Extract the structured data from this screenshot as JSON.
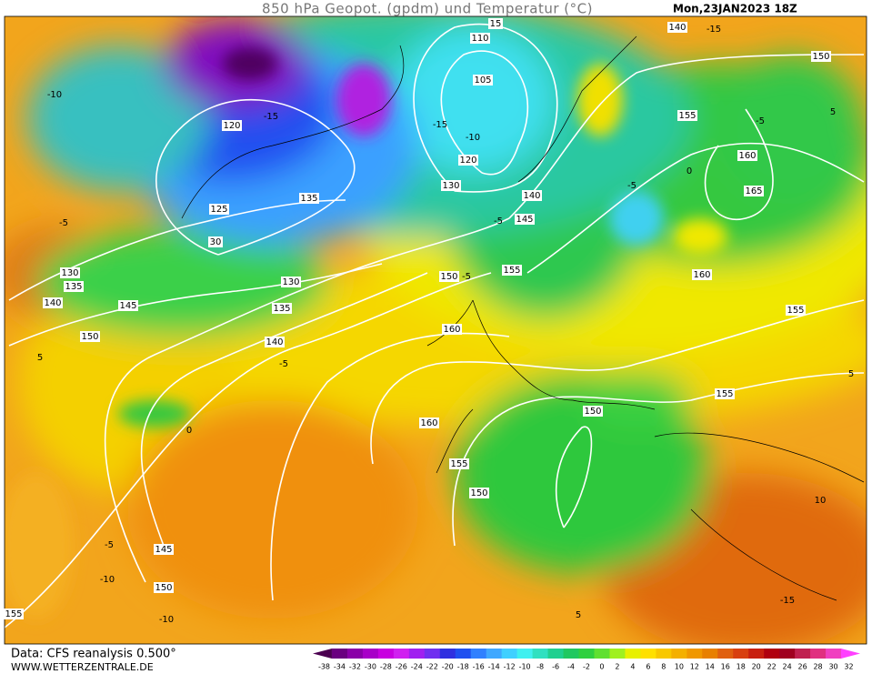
{
  "header": {
    "title": "850 hPa Geopot. (gpdm) und Temperatur (°C)",
    "date": "Mon,23JAN2023 18Z"
  },
  "footer": {
    "source": "Data: CFS reanalysis 0.500°",
    "website": "WWW.WETTERZENTRALE.DE"
  },
  "legend": {
    "labels": [
      "-38",
      "-34",
      "-32",
      "-30",
      "-28",
      "-26",
      "-24",
      "-22",
      "-20",
      "-18",
      "-16",
      "-14",
      "-12",
      "-10",
      "-8",
      "-6",
      "-4",
      "-2",
      "0",
      "2",
      "4",
      "6",
      "8",
      "10",
      "12",
      "14",
      "16",
      "18",
      "20",
      "22",
      "24",
      "26",
      "28",
      "30",
      "32"
    ],
    "colors": [
      "#4b0050",
      "#6a0080",
      "#8a00a8",
      "#a800c8",
      "#c800e0",
      "#d020f0",
      "#a020f0",
      "#7030f0",
      "#3030e0",
      "#2050f0",
      "#3080ff",
      "#40a8ff",
      "#40d0ff",
      "#40f0f0",
      "#30e0c0",
      "#20d090",
      "#20c860",
      "#30d040",
      "#60e030",
      "#a0f020",
      "#e8f000",
      "#ffe000",
      "#f8c800",
      "#f4b000",
      "#f09800",
      "#e88000",
      "#e06010",
      "#d84010",
      "#c82010",
      "#b00010",
      "#a00020",
      "#c02050",
      "#e03080",
      "#f040c0",
      "#ff40ff"
    ]
  },
  "geopotential_labels": [
    "110",
    "105",
    "120",
    "125",
    "30",
    "135",
    "120",
    "130",
    "140",
    "145",
    "150",
    "155",
    "160",
    "160",
    "155",
    "150",
    "150",
    "155",
    "155",
    "160",
    "165",
    "160",
    "155",
    "150",
    "140",
    "130",
    "135",
    "140",
    "145",
    "150",
    "130",
    "135",
    "140",
    "145",
    "150",
    "155",
    "15"
  ],
  "temperature_labels": [
    "-10",
    "-15",
    "-15",
    "-10",
    "-5",
    "-5",
    "0",
    "5",
    "-5",
    "-15",
    "5",
    "0",
    "-5",
    "-10",
    "-10",
    "5",
    "10",
    "-15",
    "-5",
    "5",
    "-5",
    "-5"
  ]
}
